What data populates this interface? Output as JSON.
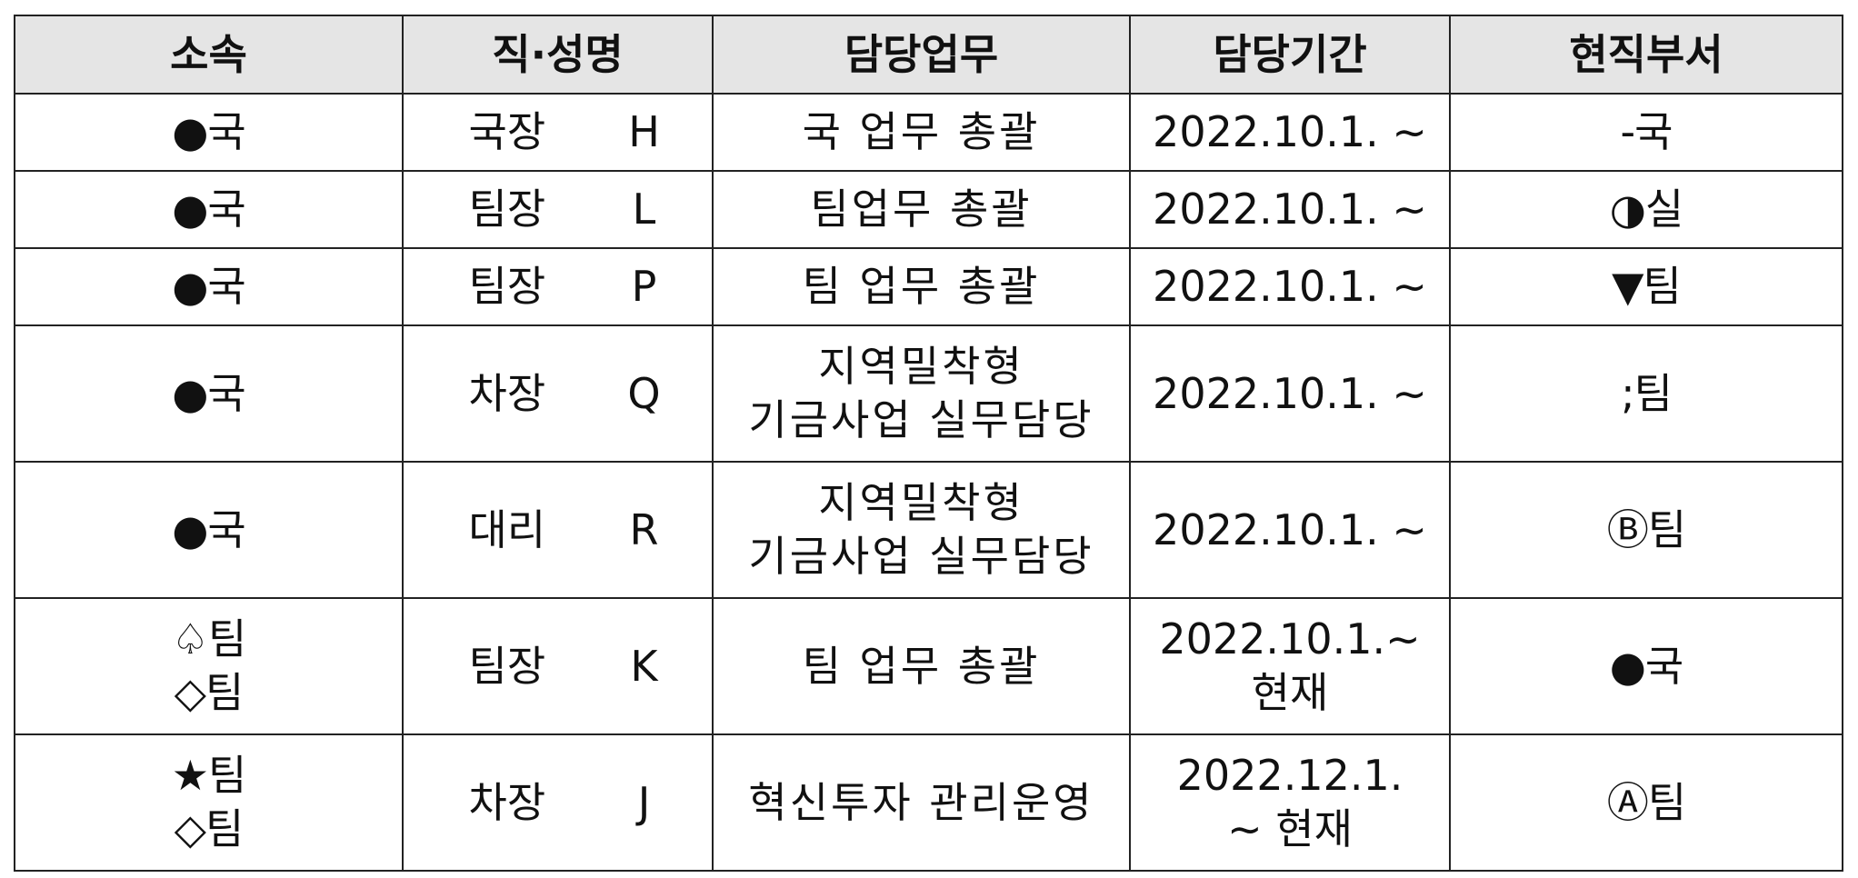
{
  "headers": [
    "소속",
    "직·성명",
    "담당업무",
    "담당기간",
    "현직부서"
  ],
  "rows": [
    {
      "dept": [
        "●국"
      ],
      "role": "국장",
      "name": "H",
      "duty": [
        "국 업무 총괄"
      ],
      "period": [
        "2022.10.1. ~"
      ],
      "current": "-국"
    },
    {
      "dept": [
        "●국"
      ],
      "role": "팀장",
      "name": "L",
      "duty": [
        "팀업무 총괄"
      ],
      "period": [
        "2022.10.1. ~"
      ],
      "current": "◑실"
    },
    {
      "dept": [
        "●국"
      ],
      "role": "팀장",
      "name": "P",
      "duty": [
        "팀 업무 총괄"
      ],
      "period": [
        "2022.10.1. ~"
      ],
      "current": "▼팀"
    },
    {
      "dept": [
        "●국"
      ],
      "role": "차장",
      "name": "Q",
      "duty": [
        "지역밀착형",
        "기금사업 실무담당"
      ],
      "period": [
        "2022.10.1. ~"
      ],
      "current": ";팀"
    },
    {
      "dept": [
        "●국"
      ],
      "role": "대리",
      "name": "R",
      "duty": [
        "지역밀착형",
        "기금사업 실무담당"
      ],
      "period": [
        "2022.10.1. ~"
      ],
      "current": "Ⓑ팀"
    },
    {
      "dept": [
        "♤팀",
        "◇팀"
      ],
      "role": "팀장",
      "name": "K",
      "duty": [
        "팀 업무 총괄"
      ],
      "period": [
        "2022.10.1.~",
        "현재"
      ],
      "current": "●국"
    },
    {
      "dept": [
        "★팀",
        "◇팀"
      ],
      "role": "차장",
      "name": "J",
      "duty": [
        "혁신투자 관리운영"
      ],
      "period": [
        "2022.12.1.",
        "~ 현재"
      ],
      "current": "Ⓐ팀"
    }
  ]
}
